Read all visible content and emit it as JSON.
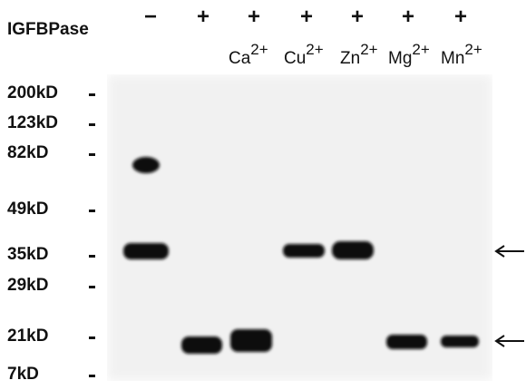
{
  "header": {
    "label": "IGFBPase",
    "lanes": [
      "−",
      "+",
      "+",
      "+",
      "+",
      "+",
      "+"
    ]
  },
  "ions": [
    {
      "symbol": "Ca",
      "charge": "2+"
    },
    {
      "symbol": "Cu",
      "charge": "2+"
    },
    {
      "symbol": "Zn",
      "charge": "2+"
    },
    {
      "symbol": "Mg",
      "charge": "2+"
    },
    {
      "symbol": "Mn",
      "charge": "2+"
    }
  ],
  "markers": [
    "200kD",
    "123kD",
    "82kD",
    "49kD",
    "35kD",
    "29kD",
    "21kD",
    "7kD"
  ]
}
